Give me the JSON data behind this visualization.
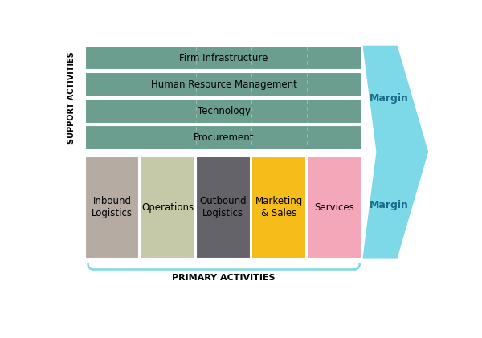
{
  "support_activities": [
    "Firm Infrastructure",
    "Human Resource Management",
    "Technology",
    "Procurement"
  ],
  "primary_activities": [
    "Inbound\nLogistics",
    "Operations",
    "Outbound\nLogistics",
    "Marketing\n& Sales",
    "Services"
  ],
  "support_colors": [
    "#6b9e8e",
    "#6b9e8e",
    "#6b9e8e",
    "#6b9e8e"
  ],
  "primary_colors": [
    "#b5aba3",
    "#c5c9a8",
    "#636369",
    "#f5bc1a",
    "#f4a7b9"
  ],
  "margin_color": "#7dd9e8",
  "background_color": "#ffffff",
  "support_label": "SUPPORT ACTIVITIES",
  "primary_label": "PRIMARY ACTIVITIES",
  "margin_label": "Margin",
  "dashed_line_color": "#9bbcb0",
  "bracket_color": "#7dd9e8",
  "margin_text_color": "#1a6b8a"
}
